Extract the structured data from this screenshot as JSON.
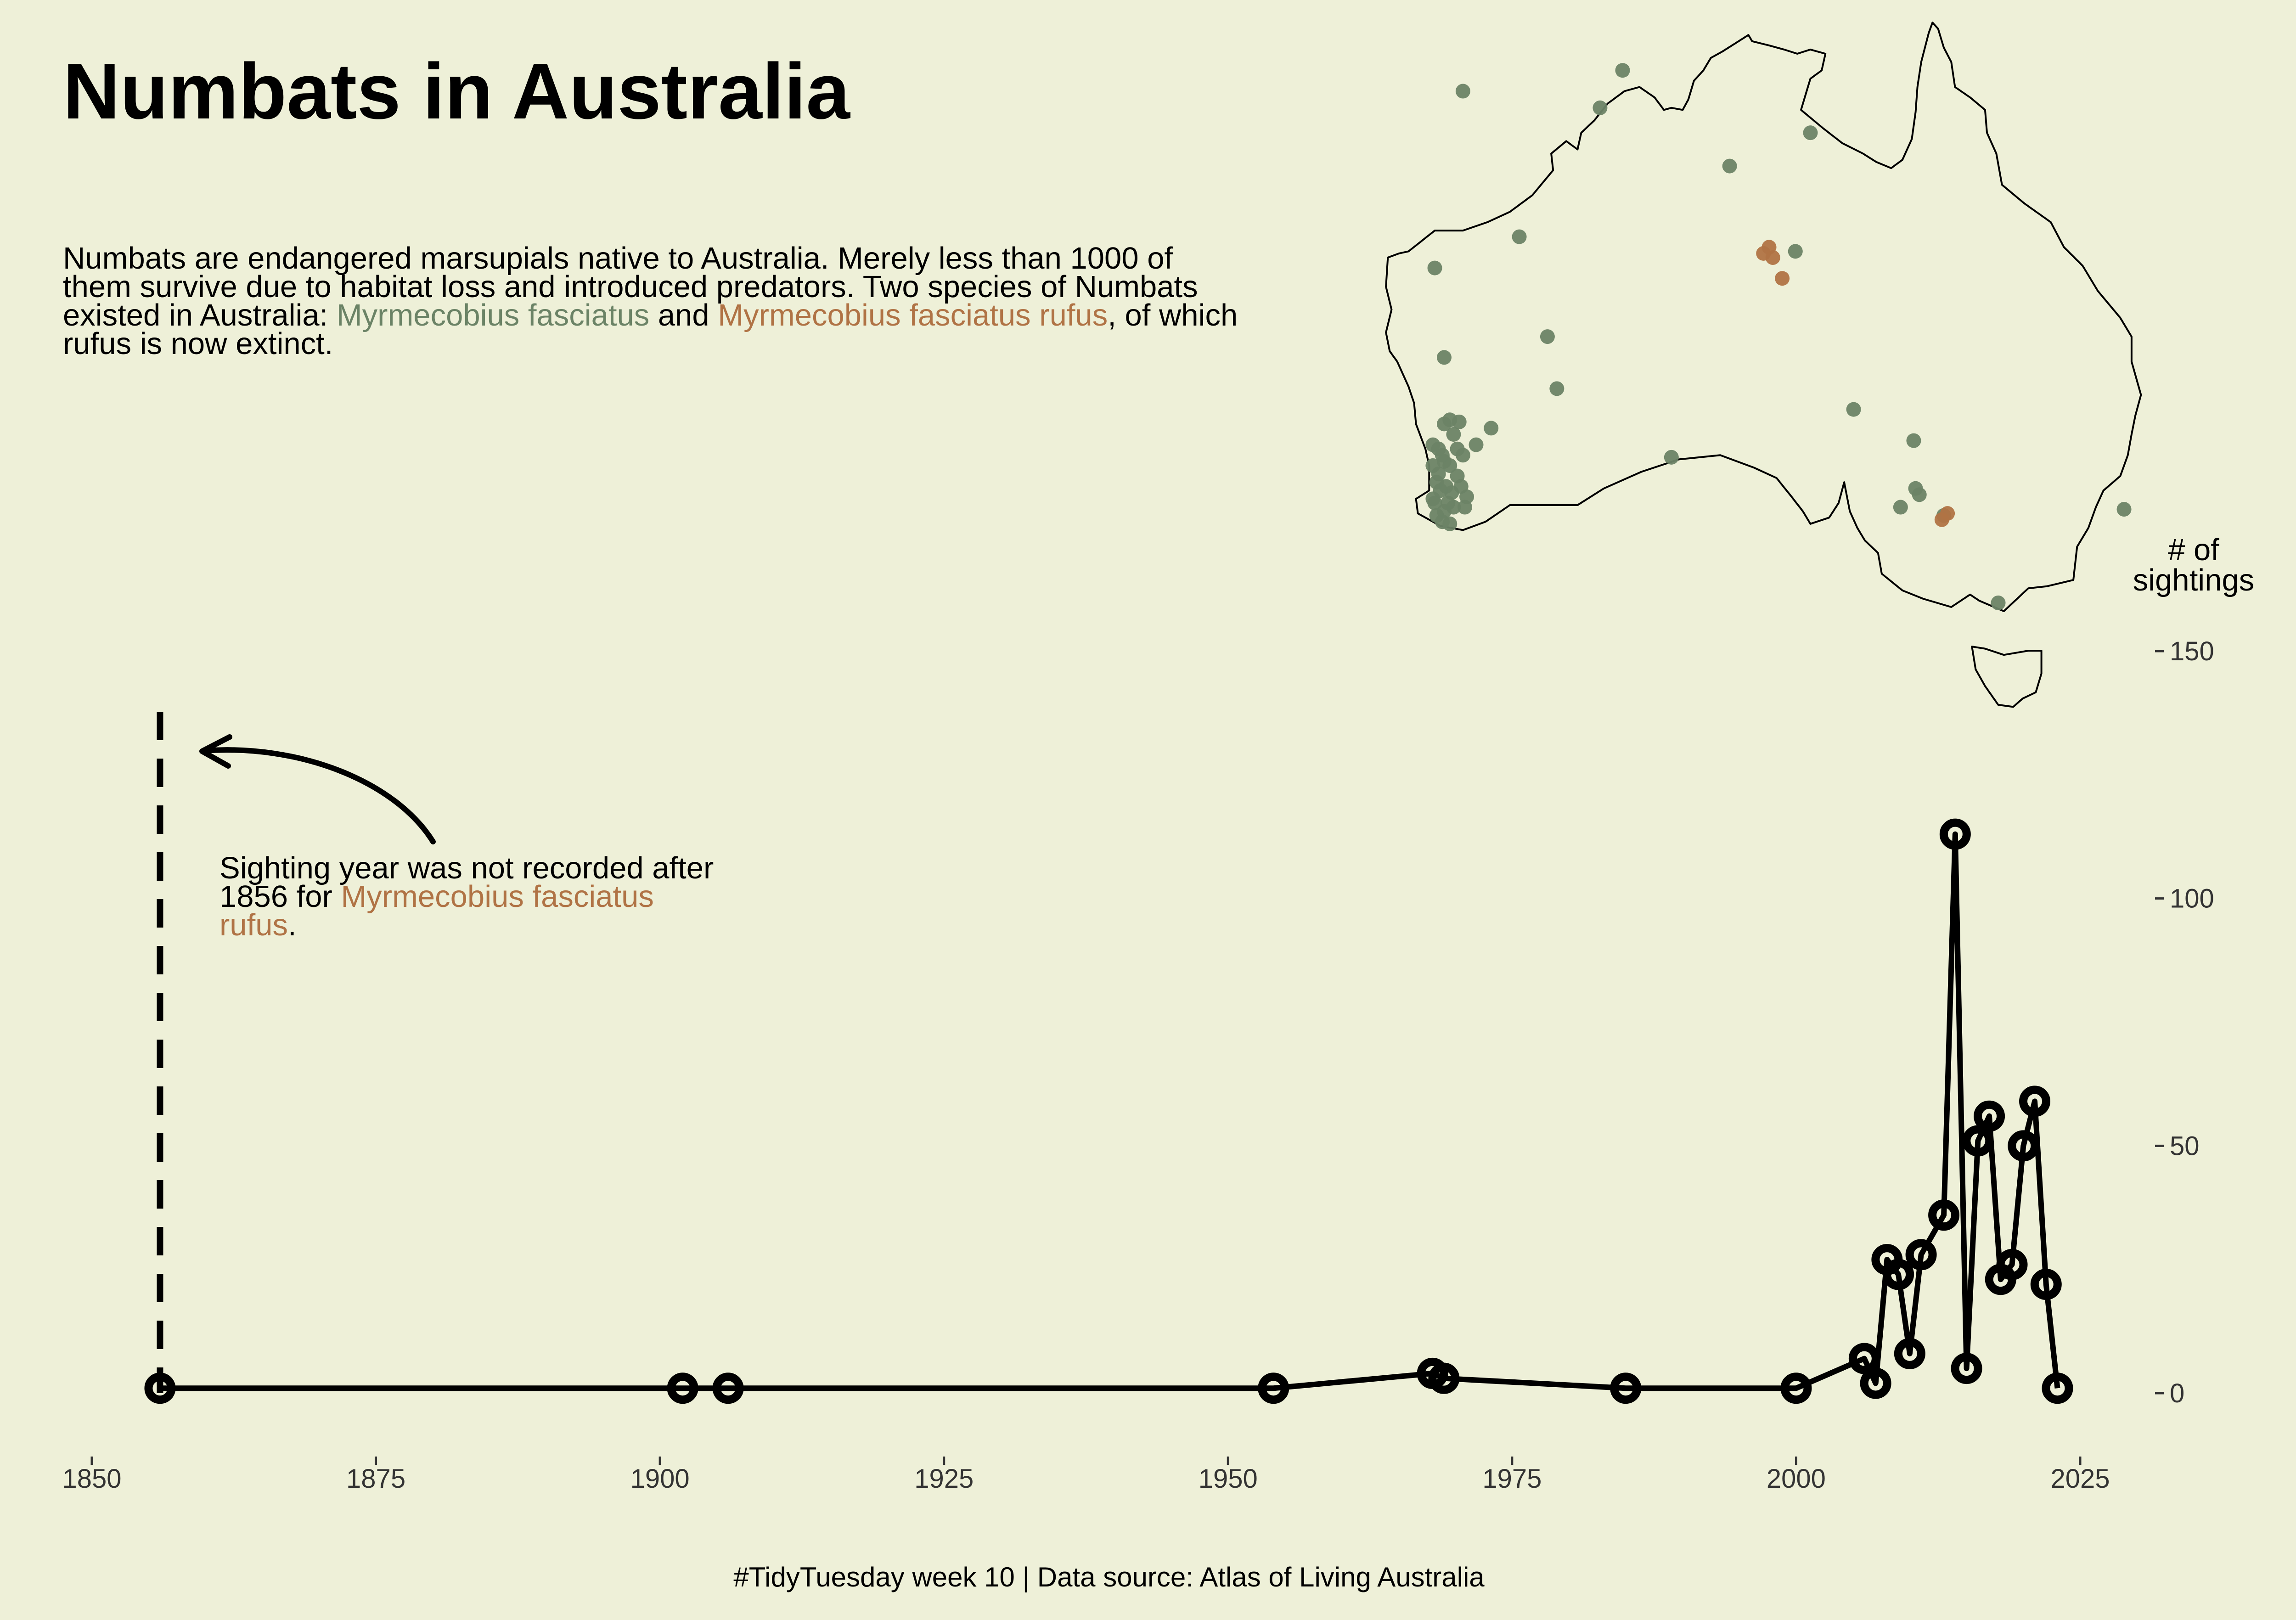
{
  "title": "Numbats in Australia",
  "subtitle": {
    "part1": "Numbats are endangered marsupials native to Australia. Merely less than 1000 of them survive due to habitat loss and introduced predators. Two species of Numbats existed in Australia: ",
    "species1": "Myrmecobius fasciatus",
    "part2": " and ",
    "species2": "Myrmecobius fasciatus rufus",
    "part3": ", of which rufus is now extinct."
  },
  "annotation": {
    "part1": "Sighting year was not recorded after 1856 for ",
    "species": "Myrmecobius fasciatus rufus",
    "part2": "."
  },
  "caption": "#TidyTuesday week 10 | Data source: Atlas of Living Australia",
  "colors": {
    "background": "#eef0d8",
    "species_fasciatus": "#6b8366",
    "species_rufus": "#b07345",
    "line": "#000000"
  },
  "chart_data": {
    "type": "line",
    "y_title": [
      "# of",
      "sightings"
    ],
    "x_ticks": [
      1850,
      1875,
      1900,
      1925,
      1950,
      1975,
      2000,
      2025
    ],
    "y_ticks": [
      0,
      50,
      100,
      150
    ],
    "xlim": [
      1848,
      2028
    ],
    "ylim": [
      -10,
      165
    ],
    "reference_line_x": 1856,
    "series": [
      {
        "x": [
          1856,
          1902,
          1906,
          1954,
          1968,
          1969,
          1985,
          2000,
          2006,
          2007,
          2008,
          2009,
          2010,
          2011,
          2013,
          2014,
          2015,
          2016,
          2017,
          2018,
          2019,
          2020,
          2021,
          2022,
          2023
        ],
        "y": [
          1,
          1,
          1,
          1,
          4,
          3,
          1,
          1,
          7,
          2,
          27,
          24,
          8,
          28,
          36,
          113,
          5,
          51,
          56,
          23,
          26,
          50,
          59,
          22,
          1
        ]
      }
    ]
  },
  "map_data": {
    "type": "scatter",
    "region": "Australia",
    "points_fasciatus": [
      [
        117.5,
        -14.0
      ],
      [
        126.0,
        -13.0
      ],
      [
        124.8,
        -14.8
      ],
      [
        131.7,
        -17.6
      ],
      [
        136.0,
        -16.0
      ],
      [
        120.5,
        -21.0
      ],
      [
        116.0,
        -22.5
      ],
      [
        122.0,
        -25.8
      ],
      [
        116.5,
        -26.8
      ],
      [
        116.2,
        -31.2
      ],
      [
        116.5,
        -31.8
      ],
      [
        116.8,
        -32.0
      ],
      [
        116.2,
        -32.4
      ],
      [
        115.9,
        -32.0
      ],
      [
        116.1,
        -32.8
      ],
      [
        116.6,
        -33.0
      ],
      [
        116.9,
        -33.3
      ],
      [
        117.2,
        -32.5
      ],
      [
        117.5,
        -31.5
      ],
      [
        118.2,
        -31.0
      ],
      [
        119.0,
        -30.2
      ],
      [
        117.3,
        -29.9
      ],
      [
        116.8,
        -29.8
      ],
      [
        116.5,
        -30.0
      ],
      [
        117.0,
        -30.5
      ],
      [
        117.7,
        -33.5
      ],
      [
        117.0,
        -34.0
      ],
      [
        116.5,
        -34.2
      ],
      [
        116.0,
        -33.8
      ],
      [
        115.9,
        -33.6
      ],
      [
        116.3,
        -33.2
      ],
      [
        116.7,
        -33.8
      ],
      [
        117.4,
        -33.0
      ],
      [
        116.4,
        -31.5
      ],
      [
        117.2,
        -31.2
      ],
      [
        115.9,
        -31.0
      ],
      [
        116.1,
        -34.4
      ],
      [
        117.6,
        -34.0
      ],
      [
        116.8,
        -34.8
      ],
      [
        116.4,
        -34.7
      ],
      [
        122.5,
        -28.3
      ],
      [
        128.6,
        -31.6
      ],
      [
        138.3,
        -29.3
      ],
      [
        141.5,
        -30.8
      ],
      [
        141.6,
        -33.1
      ],
      [
        141.8,
        -33.4
      ],
      [
        140.8,
        -34.0
      ],
      [
        143.1,
        -34.4
      ],
      [
        146.0,
        -38.6
      ],
      [
        152.7,
        -34.1
      ],
      [
        135.2,
        -21.7
      ]
    ],
    "points_rufus": [
      [
        133.5,
        -21.8
      ],
      [
        134.0,
        -22.0
      ],
      [
        133.8,
        -21.5
      ],
      [
        134.5,
        -23.0
      ],
      [
        143.0,
        -34.6
      ],
      [
        143.3,
        -34.3
      ]
    ]
  }
}
